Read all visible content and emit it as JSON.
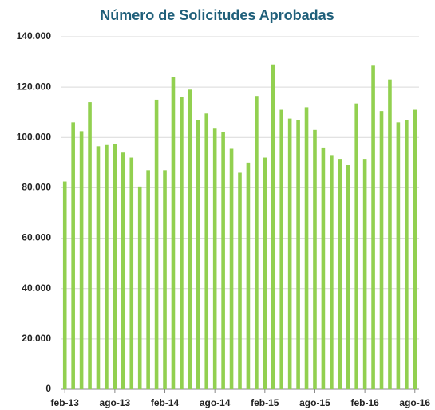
{
  "chart_data": {
    "type": "bar",
    "title": "Número de Solicitudes Aprobadas",
    "categories": [
      "feb-13",
      null,
      null,
      null,
      null,
      null,
      "ago-13",
      null,
      null,
      null,
      null,
      null,
      "feb-14",
      null,
      null,
      null,
      null,
      null,
      "ago-14",
      null,
      null,
      null,
      null,
      null,
      "feb-15",
      null,
      null,
      null,
      null,
      null,
      "ago-15",
      null,
      null,
      null,
      null,
      null,
      "feb-16",
      null,
      null,
      null,
      null,
      null,
      "ago-16"
    ],
    "values": [
      82500,
      106000,
      102500,
      114000,
      96500,
      97000,
      97500,
      94000,
      92000,
      80500,
      87000,
      115000,
      87000,
      124000,
      116000,
      119000,
      107000,
      109500,
      103500,
      102000,
      95500,
      86000,
      90000,
      116500,
      92000,
      129000,
      111000,
      107500,
      107000,
      112000,
      103000,
      96000,
      93000,
      91500,
      89000,
      113500,
      91500,
      128500,
      110500,
      123000,
      106000,
      107000,
      111000
    ],
    "color": "#92d050",
    "ylim": [
      0,
      140000
    ],
    "yticks": [
      0,
      {
        "value": 20000,
        "label": "20.000"
      },
      {
        "value": 40000,
        "label": "40.000"
      },
      {
        "value": 60000,
        "label": "60.000"
      },
      {
        "value": 80000,
        "label": "80.000"
      },
      {
        "value": 100000,
        "label": "100.000"
      },
      {
        "value": 120000,
        "label": "120.000"
      },
      {
        "value": 140000,
        "label": "140.000"
      }
    ],
    "grid": true
  }
}
